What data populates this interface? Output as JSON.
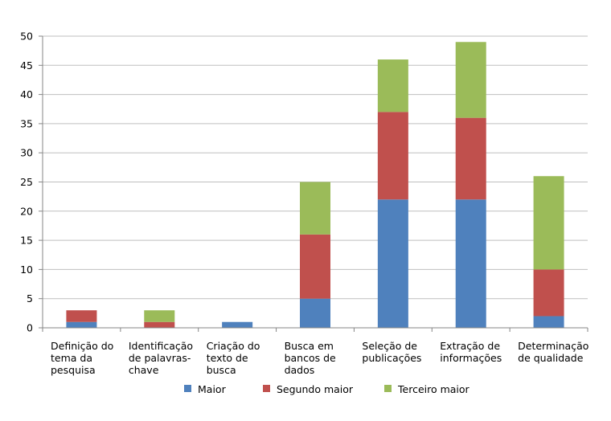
{
  "chart_data": {
    "type": "bar",
    "stacked": true,
    "categories": [
      [
        "Definição do",
        "tema da",
        "pesquisa"
      ],
      [
        "Identificação",
        "de palavras-",
        "chave"
      ],
      [
        "Criação do",
        "texto de",
        "busca"
      ],
      [
        "Busca em",
        "bancos de",
        "dados"
      ],
      [
        "Seleção de",
        "publicações"
      ],
      [
        "Extração de",
        "informações"
      ],
      [
        "Determinação",
        "de qualidade"
      ]
    ],
    "series": [
      {
        "name": "Maior",
        "color": "#4f81bd",
        "values": [
          1,
          0,
          1,
          5,
          22,
          22,
          2
        ]
      },
      {
        "name": "Segundo maior",
        "color": "#c0504d",
        "values": [
          2,
          1,
          0,
          11,
          15,
          14,
          8
        ]
      },
      {
        "name": "Terceiro maior",
        "color": "#9bbb59",
        "values": [
          0,
          2,
          0,
          9,
          9,
          13,
          16
        ]
      }
    ],
    "ylim": [
      0,
      50
    ],
    "yticks": [
      0,
      5,
      10,
      15,
      20,
      25,
      30,
      35,
      40,
      45,
      50
    ],
    "grid": true,
    "legend_position": "bottom"
  }
}
